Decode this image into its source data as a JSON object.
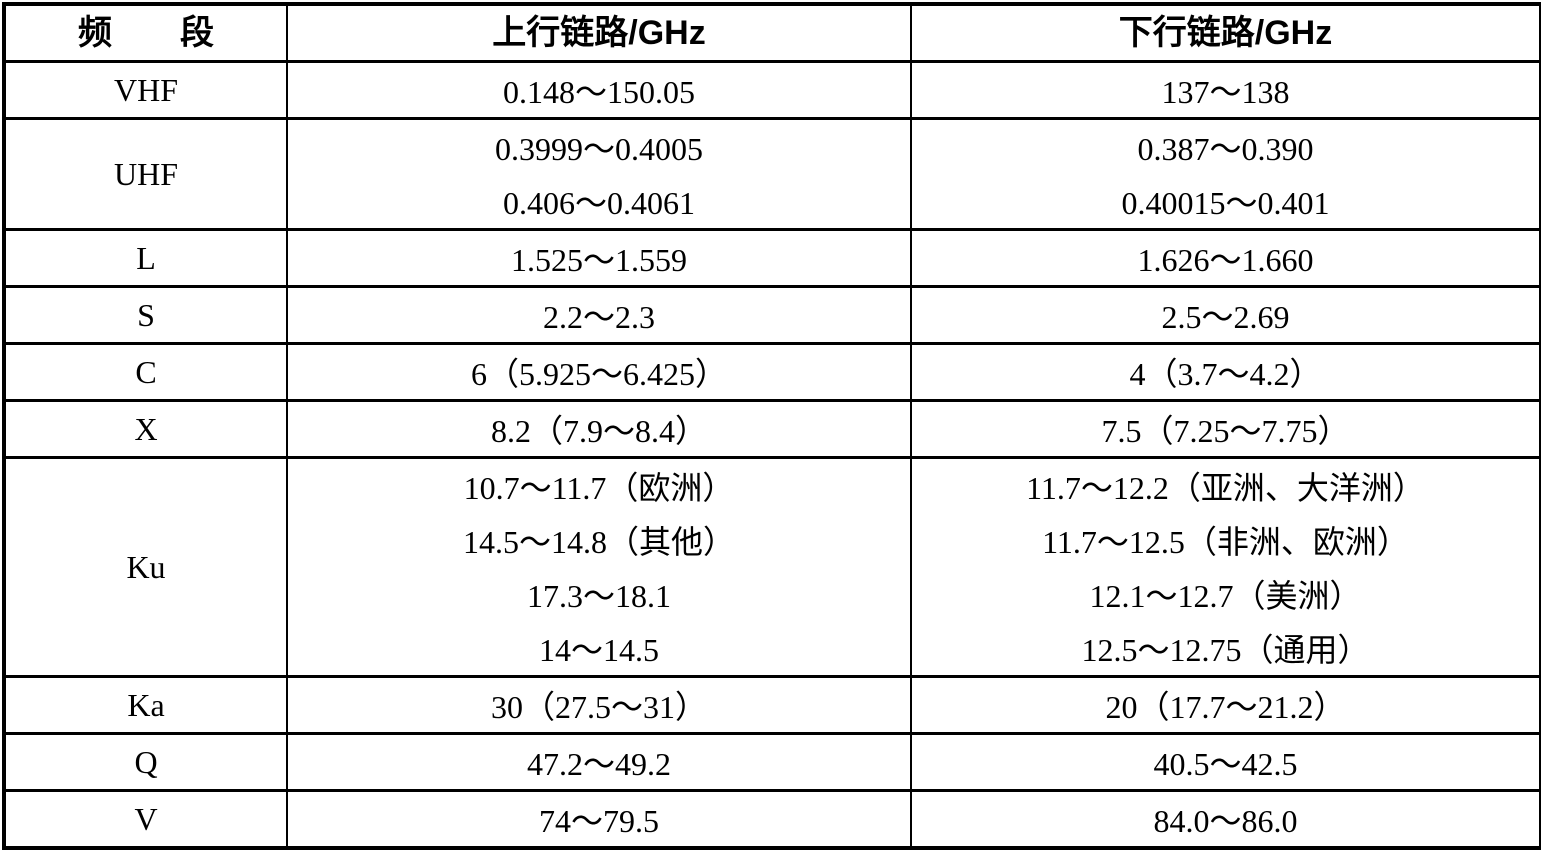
{
  "table": {
    "columns": [
      {
        "label": "频　　段"
      },
      {
        "label": "上行链路/GHz"
      },
      {
        "label": "下行链路/GHz"
      }
    ],
    "rows": [
      {
        "band": "VHF",
        "uplink": [
          "0.148～150.05"
        ],
        "downlink": [
          "137～138"
        ]
      },
      {
        "band": "UHF",
        "uplink": [
          "0.3999～0.4005",
          "0.406～0.4061"
        ],
        "downlink": [
          "0.387～0.390",
          "0.40015～0.401"
        ]
      },
      {
        "band": "L",
        "uplink": [
          "1.525～1.559"
        ],
        "downlink": [
          "1.626～1.660"
        ]
      },
      {
        "band": "S",
        "uplink": [
          "2.2～2.3"
        ],
        "downlink": [
          "2.5～2.69"
        ]
      },
      {
        "band": "C",
        "uplink": [
          "6（5.925～6.425）"
        ],
        "downlink": [
          "4（3.7～4.2）"
        ]
      },
      {
        "band": "X",
        "uplink": [
          "8.2（7.9～8.4）"
        ],
        "downlink": [
          "7.5（7.25～7.75）"
        ]
      },
      {
        "band": "Ku",
        "uplink": [
          "10.7～11.7（欧洲）",
          "14.5～14.8（其他）",
          "17.3～18.1",
          "14～14.5"
        ],
        "downlink": [
          "11.7～12.2（亚洲、大洋洲）",
          "11.7～12.5（非洲、欧洲）",
          "12.1～12.7（美洲）",
          "12.5～12.75（通用）"
        ]
      },
      {
        "band": "Ka",
        "uplink": [
          "30（27.5～31）"
        ],
        "downlink": [
          "20（17.7～21.2）"
        ]
      },
      {
        "band": "Q",
        "uplink": [
          "47.2～49.2"
        ],
        "downlink": [
          "40.5～42.5"
        ]
      },
      {
        "band": "V",
        "uplink": [
          "74～79.5"
        ],
        "downlink": [
          "84.0～86.0"
        ]
      }
    ],
    "border_color": "#000000",
    "background_color": "#ffffff",
    "text_color": "#000000"
  }
}
